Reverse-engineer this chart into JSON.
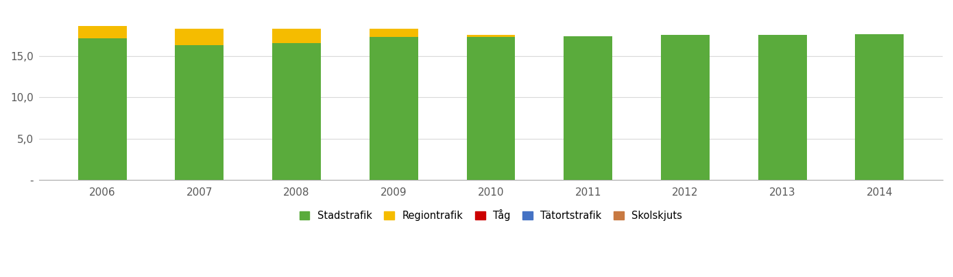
{
  "years": [
    2006,
    2007,
    2008,
    2009,
    2010,
    2011,
    2012,
    2013,
    2014
  ],
  "stadstrafik": [
    17.1,
    16.3,
    16.5,
    17.3,
    17.3,
    17.4,
    17.5,
    17.5,
    17.6
  ],
  "regiontrafik": [
    1.5,
    2.0,
    1.8,
    1.0,
    0.2,
    0.0,
    0.0,
    0.0,
    0.0
  ],
  "tag": [
    0.0,
    0.0,
    0.0,
    0.0,
    0.0,
    0.0,
    0.0,
    0.0,
    0.0
  ],
  "tatortstrafik": [
    0.0,
    0.0,
    0.0,
    0.0,
    0.0,
    0.0,
    0.0,
    0.0,
    0.0
  ],
  "skolskjuts": [
    0.0,
    0.0,
    0.0,
    0.0,
    0.0,
    0.0,
    0.0,
    0.0,
    0.0
  ],
  "colors": {
    "stadstrafik": "#5aab3c",
    "regiontrafik": "#f5bc00",
    "tag": "#cc0000",
    "tatortstrafik": "#4472c4",
    "skolskjuts": "#c87941"
  },
  "legend_labels": [
    "Stadstrafik",
    "Regiontrafik",
    "Tåg",
    "Tätortstrafik",
    "Skolskjuts"
  ],
  "ylim": [
    0,
    20.5
  ],
  "yticks": [
    0,
    5.0,
    10.0,
    15.0
  ],
  "ytick_labels": [
    "-",
    "5,0",
    "10,0",
    "15,0"
  ],
  "bar_width": 0.5,
  "background_color": "#ffffff",
  "grid_color": "#d9d9d9"
}
